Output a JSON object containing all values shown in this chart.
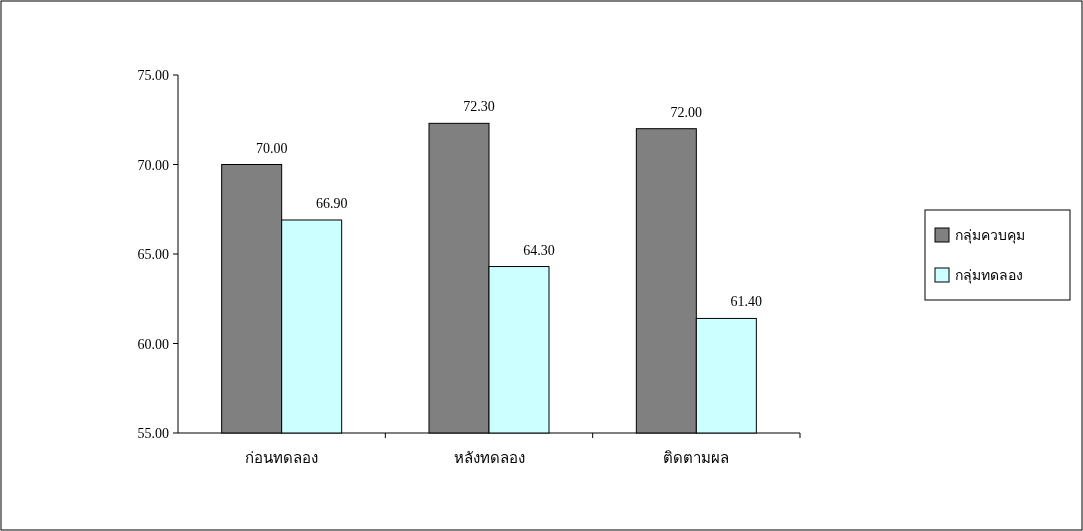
{
  "chart_data": {
    "type": "bar",
    "categories": [
      "ก่อนทดลอง",
      "หลังทดลอง",
      "ติดตามผล"
    ],
    "series": [
      {
        "name": "กลุ่มควบคุม",
        "color": "#808080",
        "values": [
          70.0,
          72.3,
          72.0
        ],
        "value_labels": [
          "70.00",
          "72.30",
          "72.00"
        ]
      },
      {
        "name": "กลุ่มทดลอง",
        "color": "#ccffff",
        "values": [
          66.9,
          64.3,
          61.4
        ],
        "value_labels": [
          "66.90",
          "64.30",
          "61.40"
        ]
      }
    ],
    "ylim": [
      55,
      75
    ],
    "yticks": [
      {
        "value": 55,
        "label": "55.00"
      },
      {
        "value": 60,
        "label": "60.00"
      },
      {
        "value": 65,
        "label": "65.00"
      },
      {
        "value": 70,
        "label": "70.00"
      },
      {
        "value": 75,
        "label": "75.00"
      }
    ],
    "legend": "right"
  }
}
